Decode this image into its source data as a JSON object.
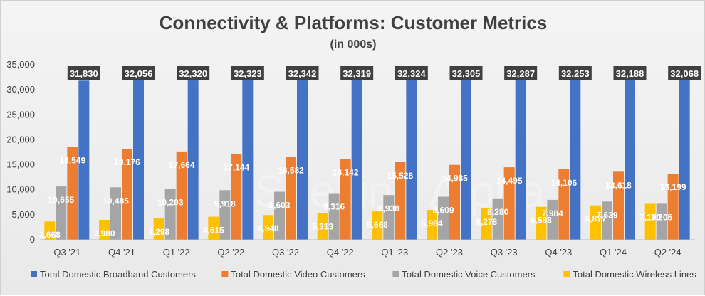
{
  "chart_data": {
    "type": "bar",
    "title": "Connectivity & Platforms: Customer Metrics",
    "subtitle": "(in 000s)",
    "categories": [
      "Q3 '21",
      "Q4 '21",
      "Q1 '22",
      "Q2 '22",
      "Q3 '22",
      "Q4 '22",
      "Q1 '23",
      "Q2 '23",
      "Q3 '23",
      "Q4 '23",
      "Q1 '24",
      "Q2 '24"
    ],
    "series": [
      {
        "name": "Total Domestic Broadband Customers",
        "color": "#4472c4",
        "values": [
          31830,
          32056,
          32320,
          32323,
          32342,
          32319,
          32324,
          32305,
          32287,
          32253,
          32188,
          32068
        ],
        "labels": [
          "31,830",
          "32,056",
          "32,320",
          "32,323",
          "32,342",
          "32,319",
          "32,324",
          "32,305",
          "32,287",
          "32,253",
          "32,188",
          "32,068"
        ]
      },
      {
        "name": "Total Domestic Video Customers",
        "color": "#ed7d31",
        "values": [
          18549,
          18176,
          17664,
          17144,
          16582,
          16142,
          15528,
          14985,
          14495,
          14106,
          13618,
          13199
        ],
        "labels": [
          "18,549",
          "18,176",
          "17,664",
          "17,144",
          "16,582",
          "16,142",
          "15,528",
          "14,985",
          "14,495",
          "14,106",
          "13,618",
          "13,199"
        ]
      },
      {
        "name": "Total Domestic Voice Customers",
        "color": "#a5a5a5",
        "values": [
          10655,
          10485,
          10203,
          9918,
          9603,
          9316,
          8938,
          8609,
          8280,
          7984,
          7639,
          7205
        ],
        "labels": [
          "10,655",
          "10,485",
          "10,203",
          "9,918",
          "9,603",
          "9,316",
          "8,938",
          "8,609",
          "8,280",
          "7,984",
          "7,639",
          "7,205"
        ]
      },
      {
        "name": "Total Domestic Wireless Lines",
        "color": "#ffc000",
        "values": [
          3668,
          3980,
          4298,
          4615,
          4948,
          5313,
          5668,
          5984,
          6278,
          6588,
          6877,
          7190
        ],
        "labels": [
          "3,668",
          "3,980",
          "4,298",
          "4,615",
          "4,948",
          "5,313",
          "5,668",
          "5,984",
          "6,278",
          "6,588",
          "6,877",
          "7,190"
        ]
      }
    ],
    "ylim": [
      0,
      35000
    ],
    "yticks": [
      0,
      5000,
      10000,
      15000,
      20000,
      25000,
      30000,
      35000
    ],
    "ytick_labels": [
      "0",
      "5,000",
      "10,000",
      "15,000",
      "20,000",
      "25,000",
      "30,000",
      "35,000"
    ],
    "legend_position": "bottom",
    "grid": false,
    "label_box_color": "#404040"
  },
  "watermark": "Seeking Alpha"
}
